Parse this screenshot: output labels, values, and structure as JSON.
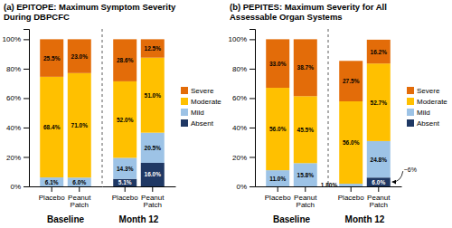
{
  "chart_data": [
    {
      "type": "bar",
      "stacked": true,
      "data_labels": true,
      "legend": "right",
      "title": "(a) EPITOPE: Maximum Symptom Severity\nDuring DBPCFC",
      "categories": [
        "Placebo",
        "Peanut\nPatch",
        "Placebo",
        "Peanut\nPatch"
      ],
      "groups": [
        "Baseline",
        "Month 12"
      ],
      "series": [
        {
          "name": "Absent",
          "color": "#1f3864",
          "values": [
            0.0,
            0.0,
            5.1,
            16.0
          ],
          "value_labels": [
            null,
            null,
            "5.1%",
            "16.0%"
          ]
        },
        {
          "name": "Mild",
          "color": "#9dc3e6",
          "values": [
            6.1,
            6.0,
            14.3,
            20.5
          ],
          "value_labels": [
            "6.1%",
            "6.0%",
            "14.3%",
            "20.5%"
          ]
        },
        {
          "name": "Moderate",
          "color": "#ffc000",
          "values": [
            68.4,
            71.0,
            52.0,
            51.0
          ],
          "value_labels": [
            "68.4%",
            "71.0%",
            "52.0%",
            "51.0%"
          ]
        },
        {
          "name": "Severe",
          "color": "#e36c09",
          "values": [
            25.5,
            23.0,
            28.6,
            12.5
          ],
          "value_labels": [
            "25.5%",
            "23.0%",
            "28.6%",
            "12.5%"
          ]
        }
      ],
      "ylim": [
        0,
        107
      ],
      "yticks": [
        {
          "value": 0,
          "label": "0%"
        },
        {
          "value": 20,
          "label": "20%"
        },
        {
          "value": 40,
          "label": "40%"
        },
        {
          "value": 60,
          "label": "60%"
        },
        {
          "value": 80,
          "label": "80%"
        },
        {
          "value": 100,
          "label": "100%"
        }
      ]
    },
    {
      "type": "bar",
      "stacked": true,
      "data_labels": true,
      "legend": "right",
      "title": "(b) PEPITES: Maximum Severity for All\nAssessable Organ Systems",
      "categories": [
        "Placebo",
        "Peanut\nPatch",
        "Placebo",
        "Peanut\nPatch"
      ],
      "groups": [
        "Baseline",
        "Month 12"
      ],
      "series": [
        {
          "name": "Absent",
          "color": "#1f3864",
          "values": [
            0.0,
            0.0,
            0.0,
            6.0
          ],
          "value_labels": [
            null,
            null,
            null,
            "6.0%"
          ]
        },
        {
          "name": "Mild",
          "color": "#9dc3e6",
          "values": [
            11.0,
            15.8,
            1.8,
            24.8
          ],
          "value_labels": [
            "11.0%",
            "15.8%",
            "1.80%",
            "24.8%"
          ]
        },
        {
          "name": "Moderate",
          "color": "#ffc000",
          "values": [
            56.0,
            45.5,
            56.0,
            52.7
          ],
          "value_labels": [
            "56.0%",
            "45.5%",
            "56.0%",
            "52.7%"
          ]
        },
        {
          "name": "Severe",
          "color": "#e36c09",
          "values": [
            33.0,
            38.7,
            27.5,
            16.2
          ],
          "value_labels": [
            "33.0%",
            "38.7%",
            "27.5%",
            "16.2%"
          ]
        }
      ],
      "annotations": [
        {
          "text": "~6%",
          "x": 3,
          "y": 6.0
        }
      ],
      "ylim": [
        0,
        107
      ],
      "yticks": [
        {
          "value": 0,
          "label": "0%"
        },
        {
          "value": 20,
          "label": "20%"
        },
        {
          "value": 40,
          "label": "40%"
        },
        {
          "value": 60,
          "label": "60%"
        },
        {
          "value": 80,
          "label": "80%"
        },
        {
          "value": 100,
          "label": "100%"
        }
      ]
    }
  ]
}
